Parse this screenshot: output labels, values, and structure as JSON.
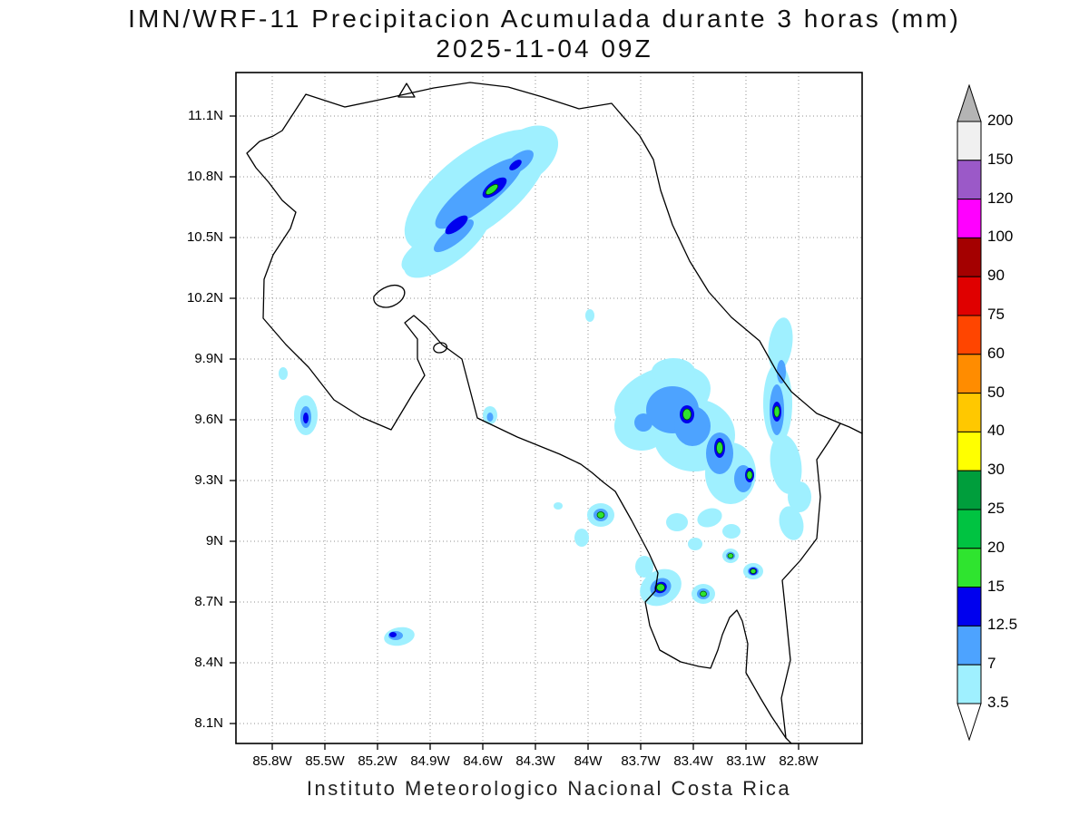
{
  "title": {
    "line1": "IMN/WRF-11 Precipitacion Acumulada durante 3 horas (mm)",
    "line2": "2025-11-04 09Z"
  },
  "footer": "Instituto Meteorologico Nacional Costa Rica",
  "axes": {
    "y_ticks": [
      "11.1N",
      "10.8N",
      "10.5N",
      "10.2N",
      "9.9N",
      "9.6N",
      "9.3N",
      "9N",
      "8.7N",
      "8.4N",
      "8.1N"
    ],
    "x_ticks": [
      "85.8W",
      "85.5W",
      "85.2W",
      "84.9W",
      "84.6W",
      "84.3W",
      "84W",
      "83.7W",
      "83.4W",
      "83.1W",
      "82.8W"
    ]
  },
  "colorbar": {
    "labels": [
      "200",
      "150",
      "120",
      "100",
      "90",
      "75",
      "60",
      "50",
      "40",
      "30",
      "25",
      "20",
      "15",
      "12.5",
      "7",
      "3.5"
    ],
    "colors": [
      "#f0f0f0",
      "#9b59c8",
      "#ff00ff",
      "#a40000",
      "#e00000",
      "#ff4500",
      "#ff8c00",
      "#ffc800",
      "#ffff00",
      "#009e3c",
      "#00c341",
      "#2fe42f",
      "#0000ee",
      "#4da3ff",
      "#9ff0ff"
    ],
    "above_color": "#b4b4b4",
    "below_color": "#ffffff"
  },
  "palette": {
    "rain-light": "#9ff0ff",
    "rain-med": "#4da3ff",
    "rain-heavy": "#0000ee",
    "rain-intense": "#2fe42f",
    "coastline": "#000000",
    "grid": "#909090"
  }
}
